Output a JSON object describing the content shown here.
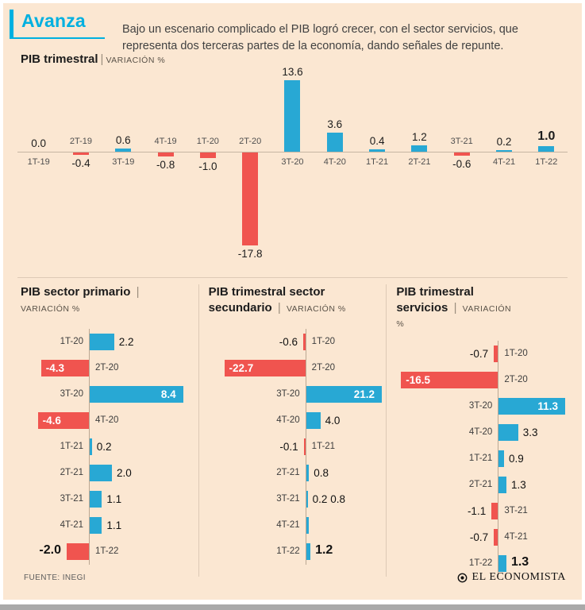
{
  "header": {
    "title": "Avanza",
    "description": "Bajo un escenario complicado el PIB logró crecer, con el sector servicios, que representa dos terceras partes de la economía, dando señales de repunte."
  },
  "ui": {
    "separator": "|"
  },
  "colors": {
    "background": "#fbe7d2",
    "positive": "#28a8d4",
    "negative": "#f0544f",
    "accent": "#00b0e0"
  },
  "footer": {
    "source": "FUENTE: INEGI",
    "brand": "EL ECONOMISTA"
  },
  "chart_data": [
    {
      "id": "pib-trimestral",
      "type": "bar",
      "orientation": "vertical",
      "title": "PIB trimestral",
      "subtitle": "VARIACIÓN %",
      "unit": "%",
      "rows": [
        {
          "quarter": "1T-19",
          "value": 0.0,
          "label": "0.0"
        },
        {
          "quarter": "2T-19",
          "value": -0.4,
          "label": "-0.4"
        },
        {
          "quarter": "3T-19",
          "value": 0.6,
          "label": "0.6"
        },
        {
          "quarter": "4T-19",
          "value": -0.8,
          "label": "-0.8"
        },
        {
          "quarter": "1T-20",
          "value": -1.0,
          "label": "-1.0"
        },
        {
          "quarter": "2T-20",
          "value": -17.8,
          "label": "-17.8"
        },
        {
          "quarter": "3T-20",
          "value": 13.6,
          "label": "13.6"
        },
        {
          "quarter": "4T-20",
          "value": 3.6,
          "label": "3.6"
        },
        {
          "quarter": "1T-21",
          "value": 0.4,
          "label": "0.4"
        },
        {
          "quarter": "2T-21",
          "value": 1.2,
          "label": "1.2"
        },
        {
          "quarter": "3T-21",
          "value": -0.6,
          "label": "-0.6"
        },
        {
          "quarter": "4T-21",
          "value": 0.2,
          "label": "0.2"
        },
        {
          "quarter": "1T-22",
          "value": 1.0,
          "label": "1.0",
          "bold": true
        }
      ]
    },
    {
      "id": "pib-sector-primario",
      "type": "bar",
      "orientation": "horizontal",
      "title": "PIB sector primario",
      "subtitle": "VARIACIÓN %",
      "unit": "%",
      "rows": [
        {
          "quarter": "1T-20",
          "value": 2.2,
          "label": "2.2"
        },
        {
          "quarter": "2T-20",
          "value": -4.3,
          "label": "-4.3",
          "inside": true
        },
        {
          "quarter": "3T-20",
          "value": 8.4,
          "label": "8.4",
          "inside": true
        },
        {
          "quarter": "4T-20",
          "value": -4.6,
          "label": "-4.6",
          "inside": true
        },
        {
          "quarter": "1T-21",
          "value": 0.2,
          "label": "0.2"
        },
        {
          "quarter": "2T-21",
          "value": 2.0,
          "label": "2.0"
        },
        {
          "quarter": "3T-21",
          "value": 1.1,
          "label": "1.1"
        },
        {
          "quarter": "4T-21",
          "value": 1.1,
          "label": "1.1"
        },
        {
          "quarter": "1T-22",
          "value": -2.0,
          "label": "-2.0",
          "bold": true
        }
      ]
    },
    {
      "id": "pib-sector-secundario",
      "type": "bar",
      "orientation": "horizontal",
      "title": "PIB trimestral sector secundario",
      "subtitle": "VARIACIÓN %",
      "unit": "%",
      "rows": [
        {
          "quarter": "1T-20",
          "value": -0.6,
          "label": "-0.6"
        },
        {
          "quarter": "2T-20",
          "value": -22.7,
          "label": "-22.7",
          "inside": true
        },
        {
          "quarter": "3T-20",
          "value": 21.2,
          "label": "21.2",
          "inside": true
        },
        {
          "quarter": "4T-20",
          "value": 4.0,
          "label": "4.0"
        },
        {
          "quarter": "1T-21",
          "value": -0.1,
          "label": "-0.1"
        },
        {
          "quarter": "2T-21",
          "value": 0.8,
          "label": "0.8"
        },
        {
          "quarter": "3T-21",
          "value": 0.2,
          "label": "0.2 0.8"
        },
        {
          "quarter": "4T-21",
          "value": 0.8,
          "label": ""
        },
        {
          "quarter": "1T-22",
          "value": 1.2,
          "label": "1.2",
          "bold": true
        }
      ]
    },
    {
      "id": "pib-servicios",
      "type": "bar",
      "orientation": "horizontal",
      "title": "PIB trimestral servicios",
      "subtitle": "VARIACIÓN %",
      "unit": "%",
      "rows": [
        {
          "quarter": "1T-20",
          "value": -0.7,
          "label": "-0.7"
        },
        {
          "quarter": "2T-20",
          "value": -16.5,
          "label": "-16.5",
          "inside": true
        },
        {
          "quarter": "3T-20",
          "value": 11.3,
          "label": "11.3",
          "inside": true
        },
        {
          "quarter": "4T-20",
          "value": 3.3,
          "label": "3.3"
        },
        {
          "quarter": "1T-21",
          "value": 0.9,
          "label": "0.9"
        },
        {
          "quarter": "2T-21",
          "value": 1.3,
          "label": "1.3"
        },
        {
          "quarter": "3T-21",
          "value": -1.1,
          "label": "-1.1"
        },
        {
          "quarter": "4T-21",
          "value": -0.7,
          "label": "-0.7"
        },
        {
          "quarter": "1T-22",
          "value": 1.3,
          "label": "1.3",
          "bold": true
        }
      ]
    }
  ]
}
